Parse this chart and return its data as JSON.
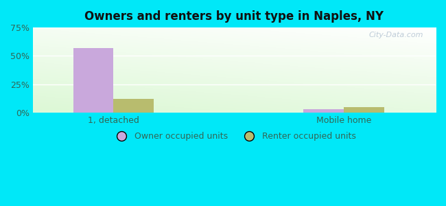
{
  "title": "Owners and renters by unit type in Naples, NY",
  "categories": [
    "1, detached",
    "Mobile home"
  ],
  "owner_values": [
    57.0,
    3.0
  ],
  "renter_values": [
    12.0,
    5.0
  ],
  "owner_color": "#c9a8dc",
  "renter_color": "#b8bc6e",
  "ylim": [
    0,
    75
  ],
  "yticks": [
    0,
    25,
    50,
    75
  ],
  "ytick_labels": [
    "0%",
    "25%",
    "50%",
    "75%"
  ],
  "legend_owner": "Owner occupied units",
  "legend_renter": "Renter occupied units",
  "background_outer": "#00e8f8",
  "background_inner_topleft": "#d8eecc",
  "background_inner_topright": "#e8f8ee",
  "background_inner_bottomleft": "#d0e8b8",
  "background_inner_bottomright": "#f0fff8",
  "bar_width": 0.35,
  "group_positions": [
    1.0,
    3.0
  ],
  "xlim": [
    0.3,
    3.8
  ],
  "watermark": "City-Data.com"
}
